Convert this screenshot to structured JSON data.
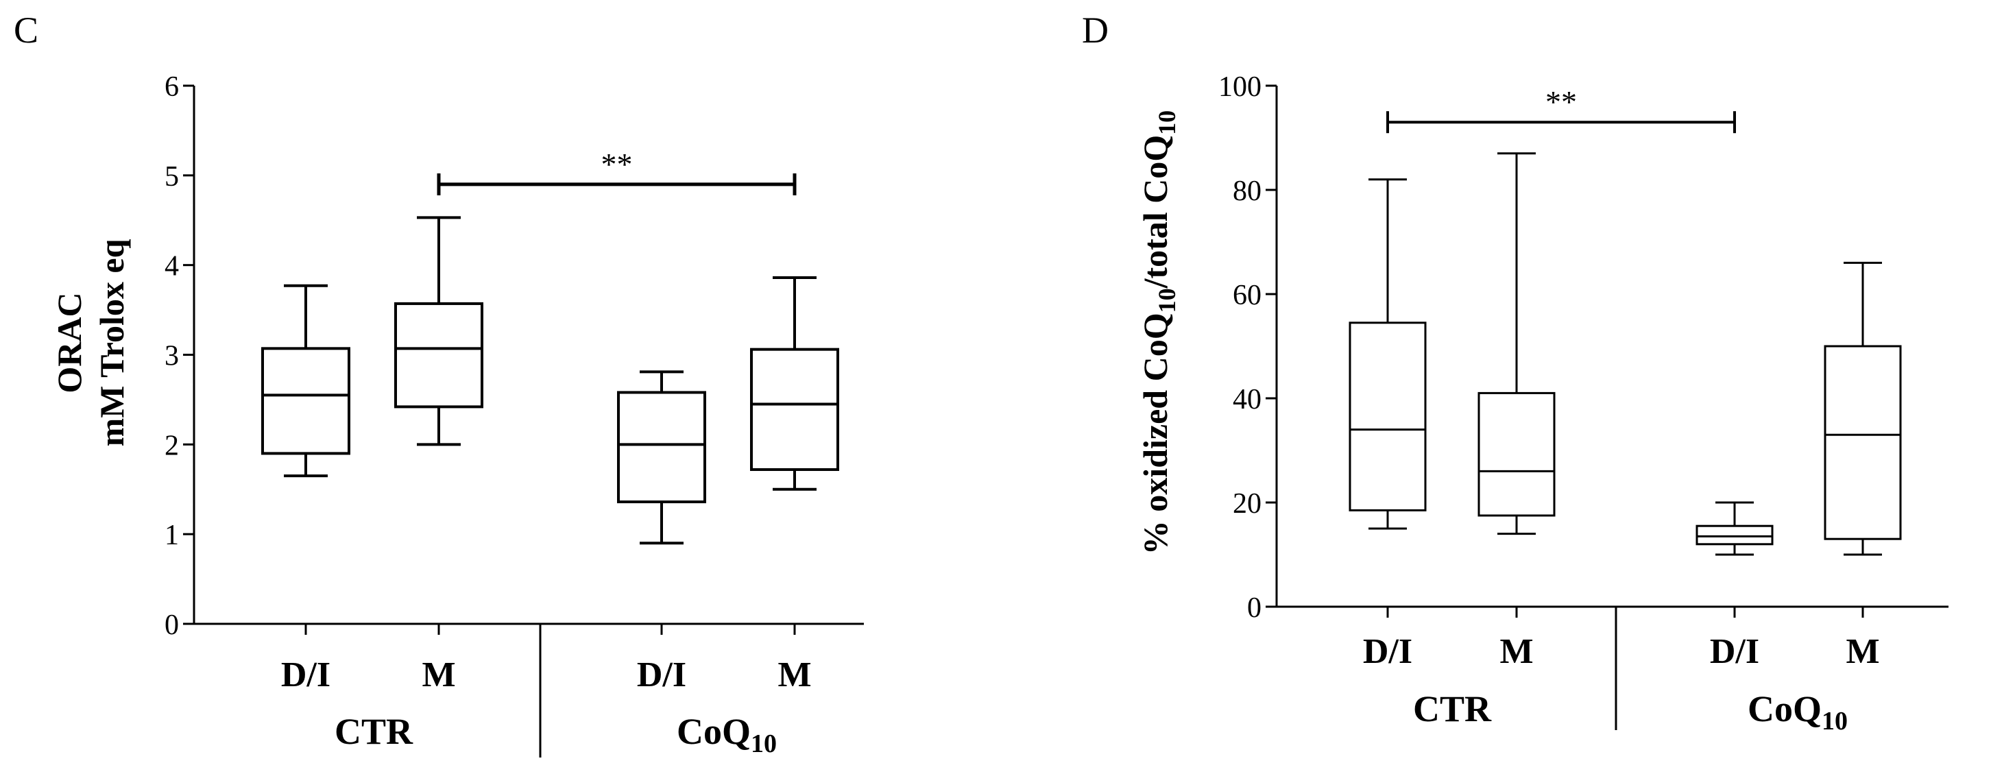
{
  "chart_data": [
    {
      "panel_label": "C",
      "type": "box",
      "title": "",
      "ylabel_line1": "ORAC",
      "ylabel_line2": "mM Trolox eq",
      "ylim": [
        0,
        6
      ],
      "yticks": [
        0,
        1,
        2,
        3,
        4,
        5,
        6
      ],
      "ytick_labels": [
        "0",
        "1",
        "2",
        "3",
        "4",
        "5",
        "6"
      ],
      "categories": [
        "D/I",
        "M",
        "D/I",
        "M"
      ],
      "groups": [
        {
          "label": "CTR",
          "subscript": ""
        },
        {
          "label": "CoQ",
          "subscript": "10"
        }
      ],
      "boxes": [
        {
          "min": 1.65,
          "q1": 1.9,
          "median": 2.55,
          "q3": 3.07,
          "max": 3.77
        },
        {
          "min": 2.0,
          "q1": 2.42,
          "median": 3.07,
          "q3": 3.57,
          "max": 4.53
        },
        {
          "min": 0.9,
          "q1": 1.36,
          "median": 2.0,
          "q3": 2.58,
          "max": 2.81
        },
        {
          "min": 1.5,
          "q1": 1.72,
          "median": 2.45,
          "q3": 3.06,
          "max": 3.86
        }
      ],
      "significance": {
        "from": 1,
        "to": 3,
        "y": 4.9,
        "label": "**"
      }
    },
    {
      "panel_label": "D",
      "type": "box",
      "title": "",
      "ylabel_prefix": "% oxidized CoQ",
      "ylabel_sub1": "10",
      "ylabel_mid": "/total CoQ",
      "ylabel_sub2": "10",
      "ylim": [
        0,
        100
      ],
      "yticks": [
        0,
        20,
        40,
        60,
        80,
        100
      ],
      "ytick_labels": [
        "0",
        "20",
        "40",
        "60",
        "80",
        "100"
      ],
      "categories": [
        "D/I",
        "M",
        "D/I",
        "M"
      ],
      "groups": [
        {
          "label": "CTR",
          "subscript": ""
        },
        {
          "label": "CoQ",
          "subscript": "10"
        }
      ],
      "boxes": [
        {
          "min": 15,
          "q1": 18.5,
          "median": 34,
          "q3": 54.5,
          "max": 82
        },
        {
          "min": 14,
          "q1": 17.5,
          "median": 26,
          "q3": 41,
          "max": 87
        },
        {
          "min": 10,
          "q1": 12,
          "median": 13.5,
          "q3": 15.5,
          "max": 20
        },
        {
          "min": 10,
          "q1": 13,
          "median": 33,
          "q3": 50,
          "max": 66
        }
      ],
      "significance": {
        "from": 0,
        "to": 2,
        "y": 93,
        "label": "**"
      }
    }
  ]
}
